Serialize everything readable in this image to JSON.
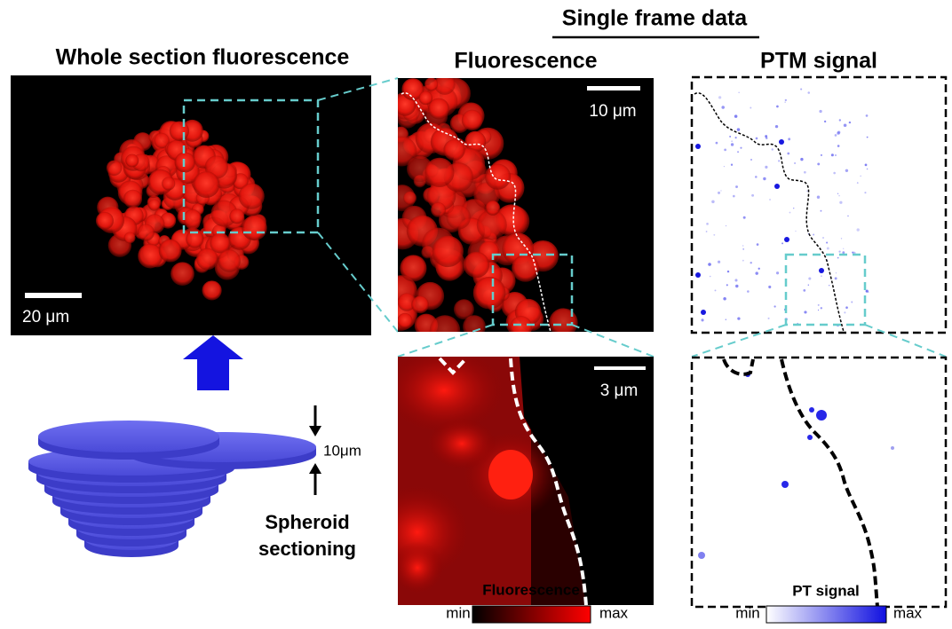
{
  "header": {
    "title": "Single frame data"
  },
  "whole_section": {
    "title": "Whole section fluorescence",
    "scale_bar": "20 μm"
  },
  "fluorescence": {
    "title": "Fluorescence",
    "scale_bar": "10 μm",
    "zoom_scale_bar": "3 μm"
  },
  "ptm": {
    "title": "PTM signal"
  },
  "sectioning": {
    "thickness": "10μm",
    "label_lines": [
      "Spheroid",
      "sectioning"
    ]
  },
  "colorbars": [
    {
      "title": "Fluorescence",
      "min": "min",
      "max": "max"
    },
    {
      "title": "PT signal",
      "min": "min",
      "max": "max"
    }
  ]
}
